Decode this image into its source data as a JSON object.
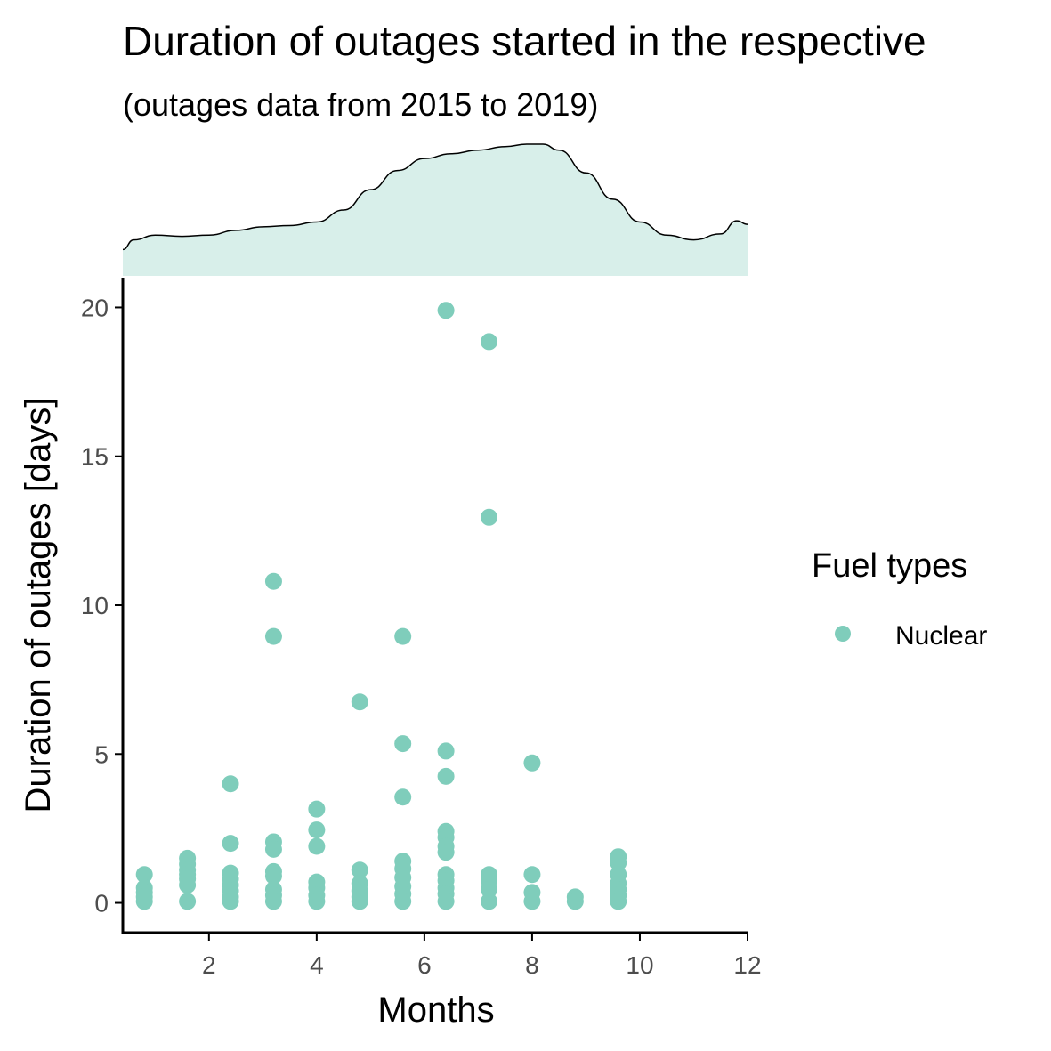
{
  "chart_data": {
    "type": "scatter",
    "title": "Duration of outages started in the respective",
    "subtitle": "(outages data from 2015 to 2019)",
    "xlabel": "Months",
    "ylabel": "Duration of outages [days]",
    "xlim": [
      0.4,
      12
    ],
    "ylim": [
      -1,
      21
    ],
    "x_ticks": [
      2,
      4,
      6,
      8,
      10,
      12
    ],
    "y_ticks": [
      0,
      5,
      10,
      15,
      20
    ],
    "grid": false,
    "legend": {
      "title": "Fuel types",
      "placement": "right",
      "entries": [
        "Nuclear"
      ]
    },
    "colors": {
      "series": "#7fcdbb",
      "density_fill": "#d8efea",
      "density_line": "#000000",
      "axis": "#000000",
      "tick_text": "#4d4d4d"
    },
    "marginal_density": {
      "x": [
        0.4,
        0.6,
        1.0,
        1.5,
        2.0,
        2.5,
        3.0,
        3.5,
        4.0,
        4.5,
        5.0,
        5.5,
        6.0,
        6.5,
        7.0,
        7.5,
        7.9,
        8.2,
        8.5,
        9.0,
        9.5,
        10.0,
        10.5,
        11.0,
        11.5,
        11.8,
        12.0
      ],
      "y": [
        0.22,
        0.3,
        0.34,
        0.33,
        0.34,
        0.38,
        0.41,
        0.42,
        0.45,
        0.55,
        0.72,
        0.88,
        0.98,
        1.02,
        1.05,
        1.08,
        1.1,
        1.1,
        1.05,
        0.86,
        0.64,
        0.45,
        0.34,
        0.3,
        0.35,
        0.46,
        0.43
      ]
    },
    "series": [
      {
        "name": "Nuclear",
        "points": [
          [
            0.8,
            0.95
          ],
          [
            0.8,
            0.5
          ],
          [
            0.8,
            0.35
          ],
          [
            0.8,
            0.2
          ],
          [
            0.8,
            0.05
          ],
          [
            1.6,
            1.5
          ],
          [
            1.6,
            1.3
          ],
          [
            1.6,
            1.1
          ],
          [
            1.6,
            0.95
          ],
          [
            1.6,
            0.8
          ],
          [
            1.6,
            0.6
          ],
          [
            1.6,
            0.05
          ],
          [
            2.4,
            4.0
          ],
          [
            2.4,
            2.0
          ],
          [
            2.4,
            1.0
          ],
          [
            2.4,
            0.8
          ],
          [
            2.4,
            0.6
          ],
          [
            2.4,
            0.4
          ],
          [
            2.4,
            0.2
          ],
          [
            2.4,
            0.05
          ],
          [
            3.2,
            10.8
          ],
          [
            3.2,
            8.95
          ],
          [
            3.2,
            2.05
          ],
          [
            3.2,
            1.8
          ],
          [
            3.2,
            1.05
          ],
          [
            3.2,
            0.9
          ],
          [
            3.2,
            0.45
          ],
          [
            3.2,
            0.25
          ],
          [
            3.2,
            0.05
          ],
          [
            4.0,
            3.15
          ],
          [
            4.0,
            2.45
          ],
          [
            4.0,
            1.9
          ],
          [
            4.0,
            0.7
          ],
          [
            4.0,
            0.5
          ],
          [
            4.0,
            0.25
          ],
          [
            4.0,
            0.05
          ],
          [
            4.8,
            6.75
          ],
          [
            4.8,
            1.1
          ],
          [
            4.8,
            0.65
          ],
          [
            4.8,
            0.4
          ],
          [
            4.8,
            0.2
          ],
          [
            4.8,
            0.05
          ],
          [
            5.6,
            8.95
          ],
          [
            5.6,
            5.35
          ],
          [
            5.6,
            3.55
          ],
          [
            5.6,
            1.4
          ],
          [
            5.6,
            1.15
          ],
          [
            5.6,
            0.85
          ],
          [
            5.6,
            0.55
          ],
          [
            5.6,
            0.3
          ],
          [
            5.6,
            0.05
          ],
          [
            6.4,
            19.9
          ],
          [
            6.4,
            5.1
          ],
          [
            6.4,
            4.25
          ],
          [
            6.4,
            2.4
          ],
          [
            6.4,
            2.2
          ],
          [
            6.4,
            1.9
          ],
          [
            6.4,
            1.7
          ],
          [
            6.4,
            0.95
          ],
          [
            6.4,
            0.75
          ],
          [
            6.4,
            0.5
          ],
          [
            6.4,
            0.3
          ],
          [
            6.4,
            0.05
          ],
          [
            7.2,
            18.85
          ],
          [
            7.2,
            12.95
          ],
          [
            7.2,
            0.95
          ],
          [
            7.2,
            0.75
          ],
          [
            7.2,
            0.45
          ],
          [
            7.2,
            0.05
          ],
          [
            8.0,
            4.7
          ],
          [
            8.0,
            0.95
          ],
          [
            8.0,
            0.35
          ],
          [
            8.0,
            0.05
          ],
          [
            8.8,
            0.2
          ],
          [
            8.8,
            0.05
          ],
          [
            9.6,
            1.55
          ],
          [
            9.6,
            1.35
          ],
          [
            9.6,
            0.95
          ],
          [
            9.6,
            0.65
          ],
          [
            9.6,
            0.45
          ],
          [
            9.6,
            0.25
          ],
          [
            9.6,
            0.05
          ]
        ]
      }
    ]
  }
}
